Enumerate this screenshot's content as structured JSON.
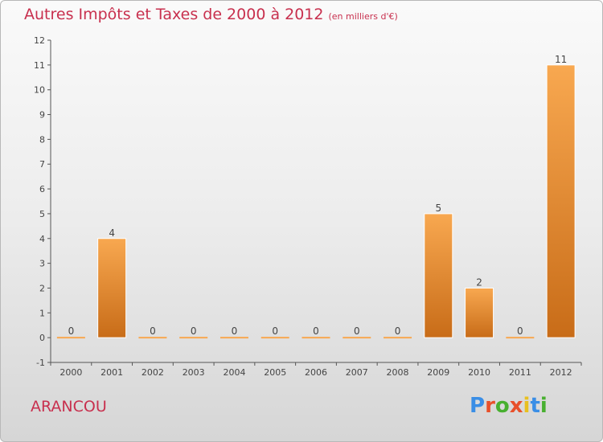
{
  "header": {
    "title": "Autres Impôts et Taxes de 2000 à 2012",
    "unit": "(en milliers d'€)"
  },
  "footer": {
    "commune": "ARANCOU",
    "logo": "Proxiti"
  },
  "colors": {
    "title": "#c8304e",
    "bar_light": "#f8a850",
    "bar_dark": "#c86c18",
    "logo_letters": [
      "#3a8ee6",
      "#e8502a",
      "#48b030",
      "#e8502a",
      "#e8c020",
      "#3a8ee6",
      "#48b030"
    ]
  },
  "chart_data": {
    "type": "bar",
    "title": "Autres Impôts et Taxes de 2000 à 2012",
    "unit": "(en milliers d'€)",
    "categories": [
      "2000",
      "2001",
      "2002",
      "2003",
      "2004",
      "2005",
      "2006",
      "2007",
      "2008",
      "2009",
      "2010",
      "2011",
      "2012"
    ],
    "values": [
      0,
      4,
      0,
      0,
      0,
      0,
      0,
      0,
      0,
      5,
      2,
      0,
      11
    ],
    "data_labels": [
      "0",
      "4",
      "0",
      "0",
      "0",
      "0",
      "0",
      "0",
      "0",
      "5",
      "2",
      "0",
      "11"
    ],
    "ylim": [
      -1,
      12
    ],
    "yticks": [
      -1,
      0,
      1,
      2,
      3,
      4,
      5,
      6,
      7,
      8,
      9,
      10,
      11,
      12
    ],
    "ytick_labels": [
      "-1",
      "0",
      "1",
      "2",
      "3",
      "4",
      "5",
      "6",
      "7",
      "8",
      "9",
      "10",
      "11",
      "12"
    ],
    "grid": false,
    "legend": "none"
  }
}
